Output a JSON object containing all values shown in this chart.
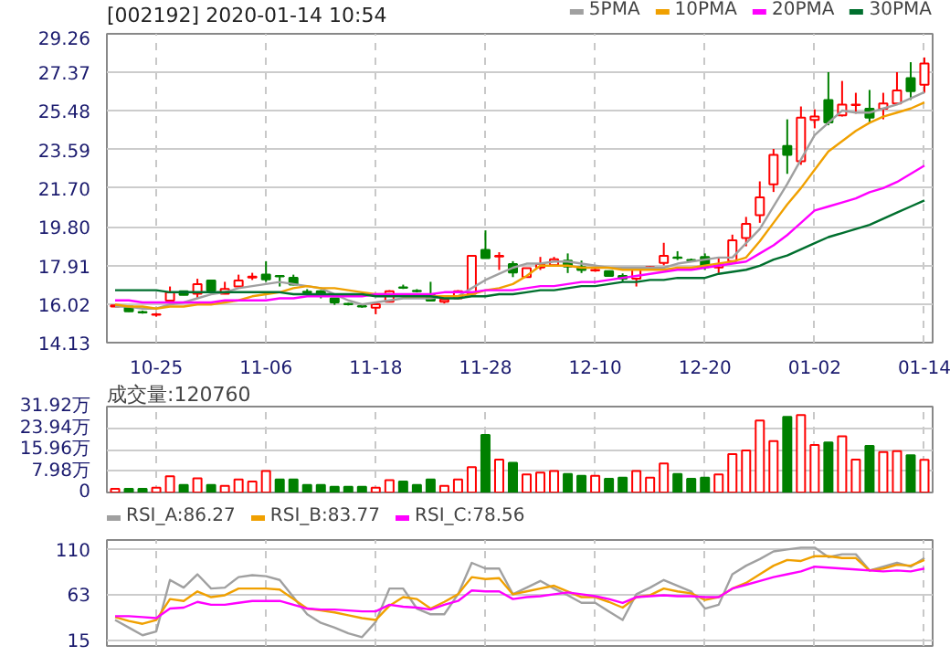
{
  "chart_data": [
    {
      "type": "candlestick",
      "title": "[002192] 2020-01-14 10:54",
      "categories": [
        null,
        null,
        null,
        "10-25",
        null,
        null,
        null,
        null,
        null,
        null,
        null,
        "11-06",
        null,
        null,
        null,
        null,
        null,
        null,
        null,
        "11-18",
        null,
        null,
        null,
        null,
        null,
        null,
        null,
        "11-28",
        null,
        null,
        null,
        null,
        null,
        null,
        null,
        "12-10",
        null,
        null,
        null,
        null,
        null,
        null,
        null,
        "12-20",
        null,
        null,
        null,
        null,
        null,
        null,
        null,
        "01-02",
        null,
        null,
        null,
        null,
        null,
        null,
        null,
        "01-14"
      ],
      "ohlc": [
        [
          15.9,
          15.98,
          15.88,
          15.95
        ],
        [
          15.9,
          15.92,
          15.64,
          15.66
        ],
        [
          15.63,
          15.7,
          15.55,
          15.61
        ],
        [
          15.5,
          15.58,
          15.4,
          15.52
        ],
        [
          16.19,
          16.88,
          16.1,
          16.59
        ],
        [
          16.65,
          16.68,
          16.45,
          16.47
        ],
        [
          16.53,
          17.26,
          16.3,
          17.0
        ],
        [
          17.17,
          17.2,
          16.65,
          16.68
        ],
        [
          16.53,
          17.11,
          16.5,
          16.76
        ],
        [
          16.88,
          17.46,
          16.85,
          17.17
        ],
        [
          17.32,
          17.55,
          17.2,
          17.36
        ],
        [
          17.46,
          18.12,
          17.11,
          17.23
        ],
        [
          17.4,
          17.4,
          16.88,
          17.37
        ],
        [
          17.31,
          17.46,
          16.94,
          16.97
        ],
        [
          16.62,
          16.75,
          16.45,
          16.59
        ],
        [
          16.65,
          16.7,
          16.3,
          16.47
        ],
        [
          16.3,
          16.32,
          15.98,
          16.1
        ],
        [
          16.03,
          16.08,
          15.95,
          16.01
        ],
        [
          15.92,
          15.95,
          15.84,
          15.9
        ],
        [
          15.84,
          16.03,
          15.52,
          16.01
        ],
        [
          16.13,
          16.7,
          16.1,
          16.65
        ],
        [
          16.84,
          16.97,
          16.76,
          16.82
        ],
        [
          16.67,
          16.75,
          16.59,
          16.65
        ],
        [
          16.47,
          17.11,
          16.17,
          16.19
        ],
        [
          16.13,
          16.27,
          16.05,
          16.24
        ],
        [
          16.3,
          16.7,
          16.27,
          16.65
        ],
        [
          16.53,
          18.4,
          16.5,
          18.38
        ],
        [
          18.67,
          19.63,
          18.27,
          18.27
        ],
        [
          18.35,
          18.56,
          17.69,
          18.38
        ],
        [
          17.98,
          18.12,
          17.34,
          17.57
        ],
        [
          17.34,
          17.8,
          17.32,
          17.78
        ],
        [
          17.81,
          18.33,
          17.69,
          17.98
        ],
        [
          17.92,
          18.33,
          17.9,
          18.21
        ],
        [
          18.15,
          18.5,
          17.54,
          17.86
        ],
        [
          17.83,
          18.15,
          17.54,
          17.69
        ],
        [
          17.67,
          17.75,
          17.6,
          17.69
        ],
        [
          17.63,
          17.66,
          17.38,
          17.4
        ],
        [
          17.4,
          17.52,
          17.11,
          17.26
        ],
        [
          17.26,
          17.83,
          16.88,
          17.75
        ],
        [
          17.81,
          17.88,
          17.78,
          17.83
        ],
        [
          18.04,
          19.02,
          17.92,
          18.38
        ],
        [
          18.3,
          18.61,
          18.18,
          18.28
        ],
        [
          18.18,
          18.25,
          18.1,
          18.16
        ],
        [
          18.33,
          18.5,
          17.69,
          17.83
        ],
        [
          17.81,
          18.33,
          17.54,
          17.98
        ],
        [
          18.12,
          19.42,
          18.04,
          19.14
        ],
        [
          19.25,
          20.29,
          18.85,
          19.95
        ],
        [
          20.38,
          22.03,
          20.0,
          21.25
        ],
        [
          21.88,
          23.62,
          21.51,
          23.33
        ],
        [
          23.76,
          25.07,
          22.4,
          23.33
        ],
        [
          23.01,
          25.7,
          22.84,
          25.15
        ],
        [
          25.04,
          25.56,
          24.63,
          25.21
        ],
        [
          26.02,
          27.38,
          24.78,
          24.92
        ],
        [
          25.27,
          26.95,
          25.21,
          25.79
        ],
        [
          25.77,
          26.37,
          25.35,
          25.79
        ],
        [
          25.59,
          26.51,
          24.92,
          25.15
        ],
        [
          25.59,
          26.37,
          25.07,
          25.85
        ],
        [
          25.85,
          27.38,
          25.79,
          26.48
        ],
        [
          27.09,
          27.87,
          26.02,
          26.45
        ],
        [
          26.77,
          28.1,
          26.37,
          27.81
        ]
      ],
      "colors": [
        "#ff0000",
        "#008000",
        "#008000",
        "#ff0000",
        "#ff0000",
        "#008000",
        "#ff0000",
        "#008000",
        "#ff0000",
        "#ff0000",
        "#ff0000",
        "#008000",
        "#008000",
        "#008000",
        "#008000",
        "#008000",
        "#008000",
        "#008000",
        "#008000",
        "#ff0000",
        "#ff0000",
        "#008000",
        "#008000",
        "#008000",
        "#ff0000",
        "#ff0000",
        "#ff0000",
        "#008000",
        "#ff0000",
        "#008000",
        "#ff0000",
        "#ff0000",
        "#ff0000",
        "#008000",
        "#008000",
        "#ff0000",
        "#008000",
        "#008000",
        "#ff0000",
        "#ff0000",
        "#ff0000",
        "#008000",
        "#008000",
        "#008000",
        "#ff0000",
        "#ff0000",
        "#ff0000",
        "#ff0000",
        "#ff0000",
        "#008000",
        "#ff0000",
        "#ff0000",
        "#008000",
        "#ff0000",
        "#ff0000",
        "#008000",
        "#ff0000",
        "#ff0000",
        "#008000",
        "#ff0000"
      ],
      "series": [
        {
          "type": "line",
          "name": "5PMA",
          "color": "#a0a0a0",
          "values": [
            15.9,
            15.9,
            15.8,
            15.8,
            16.0,
            16.1,
            16.3,
            16.5,
            16.6,
            16.8,
            16.9,
            17.0,
            17.1,
            17.0,
            16.9,
            16.8,
            16.5,
            16.2,
            16.0,
            16.1,
            16.2,
            16.3,
            16.3,
            16.3,
            16.4,
            16.4,
            16.8,
            17.2,
            17.5,
            17.8,
            18.0,
            18.0,
            18.1,
            18.1,
            18.0,
            17.9,
            17.8,
            17.8,
            17.8,
            17.8,
            17.8,
            18.0,
            18.1,
            18.2,
            18.3,
            18.3,
            19.0,
            19.7,
            20.8,
            21.9,
            23.1,
            24.3,
            24.9,
            25.5,
            25.4,
            25.4,
            25.6,
            25.8,
            26.1,
            26.4
          ]
        },
        {
          "type": "line",
          "name": "10PMA",
          "color": "#f0a000",
          "values": [
            16.0,
            15.9,
            15.9,
            15.8,
            15.9,
            15.9,
            16.0,
            16.0,
            16.1,
            16.2,
            16.4,
            16.5,
            16.6,
            16.8,
            16.9,
            16.8,
            16.8,
            16.7,
            16.6,
            16.5,
            16.5,
            16.4,
            16.4,
            16.4,
            16.4,
            16.4,
            16.5,
            16.7,
            16.8,
            17.0,
            17.4,
            17.9,
            17.9,
            17.9,
            17.8,
            17.8,
            17.8,
            17.7,
            17.7,
            17.7,
            17.7,
            17.8,
            17.8,
            17.9,
            18.0,
            18.1,
            18.3,
            19.1,
            20.0,
            20.9,
            21.7,
            22.6,
            23.5,
            24.0,
            24.5,
            24.9,
            25.2,
            25.4,
            25.6,
            25.9
          ]
        },
        {
          "type": "line",
          "name": "20PMA",
          "color": "#ff00ff",
          "values": [
            16.2,
            16.2,
            16.1,
            16.1,
            16.1,
            16.1,
            16.1,
            16.1,
            16.2,
            16.2,
            16.2,
            16.2,
            16.3,
            16.3,
            16.4,
            16.4,
            16.4,
            16.4,
            16.4,
            16.5,
            16.5,
            16.5,
            16.5,
            16.5,
            16.6,
            16.6,
            16.6,
            16.7,
            16.7,
            16.7,
            16.8,
            16.9,
            16.9,
            17.0,
            17.1,
            17.1,
            17.2,
            17.3,
            17.4,
            17.5,
            17.6,
            17.7,
            17.7,
            17.8,
            17.9,
            18.0,
            18.1,
            18.5,
            18.9,
            19.4,
            20.0,
            20.6,
            20.8,
            21.0,
            21.2,
            21.5,
            21.7,
            22.0,
            22.4,
            22.8
          ]
        },
        {
          "type": "line",
          "name": "30PMA",
          "color": "#006f2e",
          "values": [
            16.7,
            16.7,
            16.7,
            16.7,
            16.6,
            16.6,
            16.6,
            16.6,
            16.6,
            16.6,
            16.6,
            16.6,
            16.6,
            16.5,
            16.5,
            16.5,
            16.5,
            16.5,
            16.5,
            16.4,
            16.4,
            16.4,
            16.4,
            16.4,
            16.3,
            16.3,
            16.4,
            16.4,
            16.5,
            16.5,
            16.6,
            16.7,
            16.7,
            16.8,
            16.9,
            16.9,
            17.0,
            17.1,
            17.1,
            17.2,
            17.2,
            17.3,
            17.3,
            17.3,
            17.5,
            17.6,
            17.7,
            17.9,
            18.2,
            18.4,
            18.7,
            19.0,
            19.3,
            19.5,
            19.7,
            19.9,
            20.2,
            20.5,
            20.8,
            21.1
          ]
        }
      ],
      "ylim": [
        14.13,
        29.26
      ],
      "yticks": [
        14.13,
        16.02,
        17.91,
        {
          "value": 19.8,
          "label": "19.80"
        },
        {
          "value": 21.7,
          "label": "21.70"
        },
        23.59,
        25.48,
        27.37,
        29.26
      ],
      "grid": true,
      "legend": "top right"
    },
    {
      "type": "bar",
      "title": "成交量:120760",
      "categories": [
        null,
        null,
        null,
        null,
        null,
        null,
        null,
        null,
        null,
        null,
        null,
        null,
        null,
        null,
        null,
        null,
        null,
        null,
        null,
        null,
        null,
        null,
        null,
        null,
        null,
        null,
        null,
        null,
        null,
        null,
        null,
        null,
        null,
        null,
        null,
        null,
        null,
        null,
        null,
        null,
        null,
        null,
        null,
        null,
        null,
        null,
        null,
        null,
        null,
        null,
        null,
        null,
        null,
        null,
        null,
        null,
        null,
        null,
        null,
        null
      ],
      "values": [
        1.4,
        1.4,
        1.4,
        1.8,
        6.0,
        2.8,
        5.3,
        2.8,
        2.5,
        4.8,
        4.1,
        8.0,
        4.8,
        4.8,
        2.8,
        2.8,
        2.1,
        2.1,
        2.1,
        1.8,
        4.6,
        4.1,
        2.8,
        4.8,
        2.5,
        4.8,
        9.4,
        21.4,
        12.2,
        11.0,
        6.7,
        7.4,
        8.0,
        6.9,
        6.2,
        6.2,
        5.1,
        5.5,
        8.0,
        5.5,
        10.8,
        6.9,
        5.1,
        5.5,
        6.7,
        14.3,
        15.6,
        26.7,
        19.1,
        28.1,
        28.8,
        17.7,
        18.6,
        20.9,
        12.2,
        17.3,
        15.0,
        15.4,
        13.8,
        12.1
      ],
      "colors": [
        "#ff0000",
        "#008000",
        "#008000",
        "#ff0000",
        "#ff0000",
        "#008000",
        "#ff0000",
        "#008000",
        "#ff0000",
        "#ff0000",
        "#ff0000",
        "#ff0000",
        "#008000",
        "#008000",
        "#008000",
        "#008000",
        "#008000",
        "#008000",
        "#008000",
        "#ff0000",
        "#ff0000",
        "#008000",
        "#008000",
        "#008000",
        "#ff0000",
        "#ff0000",
        "#ff0000",
        "#008000",
        "#ff0000",
        "#008000",
        "#ff0000",
        "#ff0000",
        "#ff0000",
        "#008000",
        "#008000",
        "#ff0000",
        "#008000",
        "#008000",
        "#ff0000",
        "#ff0000",
        "#ff0000",
        "#008000",
        "#008000",
        "#008000",
        "#ff0000",
        "#ff0000",
        "#ff0000",
        "#ff0000",
        "#ff0000",
        "#008000",
        "#ff0000",
        "#ff0000",
        "#008000",
        "#ff0000",
        "#ff0000",
        "#008000",
        "#ff0000",
        "#ff0000",
        "#008000",
        "#ff0000"
      ],
      "ylim": [
        0,
        31.92
      ],
      "yticks": [
        0,
        {
          "value": 7.98,
          "label": "7.98万"
        },
        {
          "value": 15.96,
          "label": "15.96万"
        },
        {
          "value": 23.94,
          "label": "23.94万"
        },
        {
          "value": 31.92,
          "label": "31.92万"
        }
      ],
      "tick_labels": "y",
      "grid": true
    },
    {
      "type": "line",
      "categories": [
        null,
        null,
        null,
        null,
        null,
        null,
        null,
        null,
        null,
        null,
        null,
        null,
        null,
        null,
        null,
        null,
        null,
        null,
        null,
        null,
        null,
        null,
        null,
        null,
        null,
        null,
        null,
        null,
        null,
        null,
        null,
        null,
        null,
        null,
        null,
        null,
        null,
        null,
        null,
        null,
        null,
        null,
        null,
        null,
        null,
        null,
        null,
        null,
        null,
        null,
        null,
        null,
        null,
        null,
        null,
        null,
        null,
        null,
        null,
        null
      ],
      "series": [
        {
          "name": "RSI_A:86.27",
          "color": "#a0a0a0",
          "values": [
            36,
            28,
            20,
            24,
            78,
            70,
            84,
            69,
            70,
            81,
            83,
            82,
            78,
            60,
            42,
            33,
            28,
            22,
            18,
            34,
            69,
            69,
            48,
            42,
            42,
            63,
            96,
            90,
            90,
            63,
            70,
            77,
            69,
            62,
            54,
            54,
            45,
            36,
            63,
            70,
            78,
            72,
            66,
            48,
            52,
            84,
            93,
            100,
            108,
            110,
            112,
            112,
            102,
            105,
            105,
            88,
            92,
            96,
            92,
            101
          ]
        },
        {
          "name": "RSI_B:83.77",
          "color": "#f0a000",
          "values": [
            39,
            35,
            32,
            36,
            58,
            56,
            66,
            60,
            62,
            69,
            69,
            69,
            68,
            58,
            48,
            46,
            44,
            41,
            38,
            36,
            51,
            60,
            58,
            48,
            55,
            63,
            81,
            79,
            80,
            63,
            66,
            69,
            72,
            66,
            60,
            60,
            55,
            49,
            60,
            62,
            69,
            66,
            64,
            57,
            60,
            69,
            75,
            84,
            93,
            99,
            98,
            103,
            103,
            101,
            101,
            88,
            90,
            94,
            93,
            99
          ]
        },
        {
          "name": "RSI_C:78.56",
          "color": "#ff00ff",
          "values": [
            40,
            40,
            39,
            38,
            48,
            49,
            55,
            52,
            52,
            54,
            56,
            56,
            56,
            52,
            48,
            47,
            47,
            46,
            45,
            45,
            52,
            50,
            49,
            47,
            52,
            56,
            67,
            66,
            66,
            58,
            60,
            61,
            63,
            65,
            63,
            61,
            58,
            54,
            60,
            61,
            62,
            61,
            61,
            60,
            60,
            69,
            73,
            77,
            81,
            84,
            87,
            92,
            91,
            90,
            89,
            88,
            87,
            88,
            87,
            90
          ]
        }
      ],
      "ylim": [
        8.7,
        120
      ],
      "yticks": [
        15,
        63,
        110
      ],
      "tick_labels": "y",
      "grid": true,
      "legend": "top left"
    }
  ]
}
